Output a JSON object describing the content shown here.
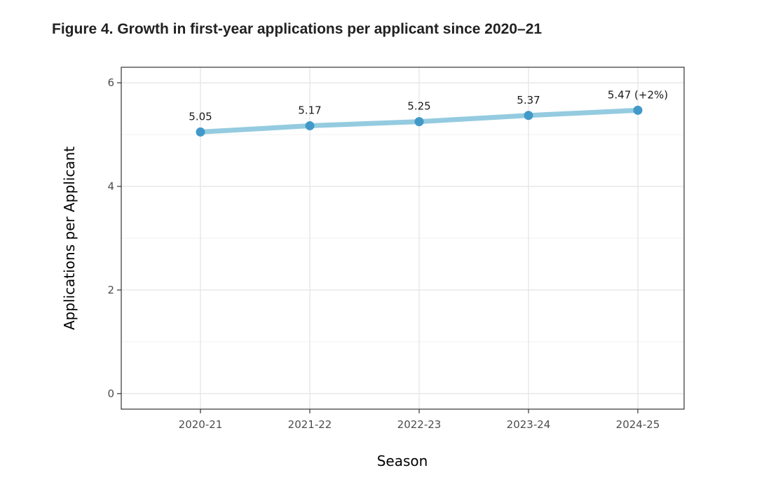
{
  "figure": {
    "title": "Figure 4. Growth in first-year applications per applicant since 2020–21"
  },
  "chart_data": {
    "type": "line",
    "title": "Figure 4. Growth in first-year applications per applicant since 2020–21",
    "xlabel": "Season",
    "ylabel": "Applications per Applicant",
    "categories": [
      "2020-21",
      "2021-22",
      "2022-23",
      "2023-24",
      "2024-25"
    ],
    "series": [
      {
        "values": [
          5.05,
          5.17,
          5.25,
          5.37,
          5.47
        ],
        "labels": [
          "5.05",
          "5.17",
          "5.25",
          "5.37",
          "5.47 (+2%)"
        ],
        "line_color": "#94cbe0",
        "point_color": "#4199c9"
      }
    ],
    "ylim": [
      -0.3,
      6.3
    ],
    "yticks": [
      0,
      2,
      4,
      6
    ],
    "grid": true,
    "legend": "none"
  }
}
